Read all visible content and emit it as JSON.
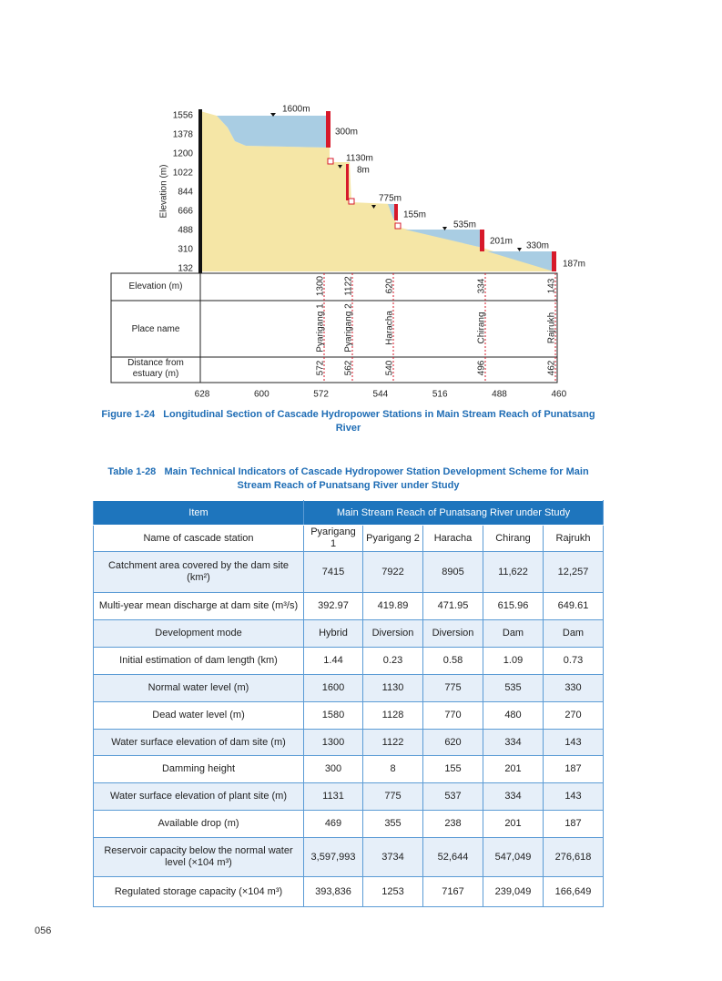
{
  "figure": {
    "y_axis_label": "Elevation (m)",
    "y_ticks": [
      "1556",
      "1378",
      "1200",
      "1022",
      "844",
      "666",
      "488",
      "310",
      "132"
    ],
    "annotations": [
      "1600m",
      "300m",
      "1130m",
      "8m",
      "775m",
      "155m",
      "535m",
      "201m",
      "330m",
      "187m"
    ],
    "row_labels": [
      "Elevation (m)",
      "Place name",
      "Distance from estuary (m)"
    ],
    "stations": [
      {
        "elevation": "1300",
        "place": "Pyarigang 1",
        "distance": "572"
      },
      {
        "elevation": "1122",
        "place": "Pyarigang 2",
        "distance": "562"
      },
      {
        "elevation": "620",
        "place": "Haracha",
        "distance": "540"
      },
      {
        "elevation": "334",
        "place": "Chirang",
        "distance": "496"
      },
      {
        "elevation": "143",
        "place": "Rajrukh",
        "distance": "462"
      }
    ],
    "x_ticks": [
      "628",
      "600",
      "572",
      "544",
      "516",
      "488",
      "460"
    ],
    "caption": {
      "label": "Figure 1-24",
      "title": "Longitudinal Section of Cascade Hydropower Stations in Main Stream Reach of Punatsang River"
    }
  },
  "table": {
    "caption": {
      "label": "Table 1-28",
      "title": "Main Technical Indicators of Cascade Hydropower Station Development Scheme for Main Stream Reach of Punatsang River under Study"
    },
    "header": [
      "Item",
      "Main Stream Reach of Punatsang River under Study"
    ],
    "rows": [
      [
        "Name of cascade station",
        "Pyarigang 1",
        "Pyarigang 2",
        "Haracha",
        "Chirang",
        "Rajrukh"
      ],
      [
        "Catchment area covered by the dam site (km²)",
        "7415",
        "7922",
        "8905",
        "11,622",
        "12,257"
      ],
      [
        "Multi-year mean discharge at dam site (m³/s)",
        "392.97",
        "419.89",
        "471.95",
        "615.96",
        "649.61"
      ],
      [
        "Development mode",
        "Hybrid",
        "Diversion",
        "Diversion",
        "Dam",
        "Dam"
      ],
      [
        "Initial estimation of dam length (km)",
        "1.44",
        "0.23",
        "0.58",
        "1.09",
        "0.73"
      ],
      [
        "Normal water level (m)",
        "1600",
        "1130",
        "775",
        "535",
        "330"
      ],
      [
        "Dead water level (m)",
        "1580",
        "1128",
        "770",
        "480",
        "270"
      ],
      [
        "Water surface elevation of dam site (m)",
        "1300",
        "1122",
        "620",
        "334",
        "143"
      ],
      [
        "Damming height",
        "300",
        "8",
        "155",
        "201",
        "187"
      ],
      [
        "Water surface elevation of plant site (m)",
        "1131",
        "775",
        "537",
        "334",
        "143"
      ],
      [
        "Available drop (m)",
        "469",
        "355",
        "238",
        "201",
        "187"
      ],
      [
        "Reservoir capacity below the normal water level (×104 m³)",
        "3,597,993",
        "3734",
        "52,644",
        "547,049",
        "276,618"
      ],
      [
        "Regulated storage capacity (×104 m³)",
        "393,836",
        "1253",
        "7167",
        "239,049",
        "166,649"
      ]
    ]
  },
  "page_number": "056"
}
